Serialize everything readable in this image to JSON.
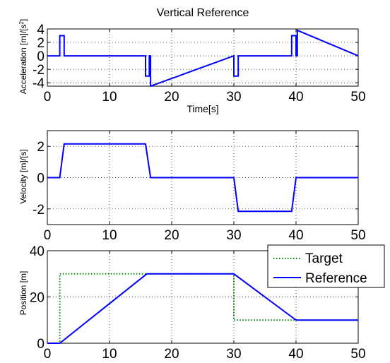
{
  "chart_data": [
    {
      "type": "line",
      "title": "Vertical Reference",
      "xlabel": "Time[s]",
      "ylabel_main": "Acceleration [m]/[s",
      "ylabel_sup": "2",
      "ylabel_end": "]",
      "xlim": [
        0,
        50
      ],
      "ylim": [
        -4.5,
        4
      ],
      "xticks": [
        "0",
        "10",
        "20",
        "30",
        "40",
        "50"
      ],
      "xtick_values": [
        0,
        10,
        20,
        30,
        40,
        50
      ],
      "yticks": [
        "4",
        "2",
        "0",
        "-2",
        "-4"
      ],
      "ytick_values": [
        4,
        2,
        0,
        -2,
        -4
      ],
      "grid": true,
      "series": [
        {
          "color": "#0000ff",
          "x": [
            0,
            2,
            2,
            2.7,
            2.7,
            15.8,
            15.8,
            16.4,
            16.4,
            16.6,
            16.6,
            30,
            30,
            30.7,
            30.7,
            39.3,
            39.3,
            40,
            40,
            40.2,
            40.2,
            50
          ],
          "y": [
            0,
            0,
            3,
            3,
            0,
            0,
            -3,
            -3,
            0,
            0,
            -4.5,
            0,
            -3,
            -3,
            0,
            0,
            3,
            3,
            0,
            0,
            3.8,
            0
          ]
        }
      ]
    },
    {
      "type": "line",
      "ylabel": "Velocity [m]/[s]",
      "xlim": [
        0,
        50
      ],
      "ylim": [
        -3,
        3
      ],
      "xticks": [
        "0",
        "10",
        "20",
        "30",
        "40",
        "50"
      ],
      "xtick_values": [
        0,
        10,
        20,
        30,
        40,
        50
      ],
      "yticks": [
        "2",
        "0",
        "-2"
      ],
      "ytick_values": [
        2,
        0,
        -2
      ],
      "grid": true,
      "series": [
        {
          "color": "#0000ff",
          "x": [
            0,
            2,
            2.7,
            15.8,
            16.6,
            30,
            30.7,
            39.3,
            40,
            50
          ],
          "y": [
            0,
            0,
            2.15,
            2.15,
            0,
            0,
            -2.15,
            -2.15,
            0,
            0
          ]
        }
      ]
    },
    {
      "type": "line",
      "ylabel": "Position [m]",
      "xlim": [
        0,
        50
      ],
      "ylim": [
        0,
        40
      ],
      "xticks": [
        "0",
        "10",
        "20",
        "30",
        "40",
        "50"
      ],
      "xtick_values": [
        0,
        10,
        20,
        30,
        40,
        50
      ],
      "yticks": [
        "40",
        "20",
        "0"
      ],
      "ytick_values": [
        40,
        20,
        0
      ],
      "grid": true,
      "legend_position": "top-right",
      "series": [
        {
          "name": "Target",
          "color": "#008000",
          "dash": "dotted",
          "x": [
            0,
            2,
            2,
            30,
            30,
            50
          ],
          "y": [
            0,
            0,
            30,
            30,
            10,
            10
          ]
        },
        {
          "name": "Reference",
          "color": "#0000ff",
          "dash": "solid",
          "x": [
            0,
            2,
            16,
            30,
            40,
            50
          ],
          "y": [
            0,
            0,
            30,
            30,
            10,
            10
          ]
        }
      ]
    }
  ]
}
